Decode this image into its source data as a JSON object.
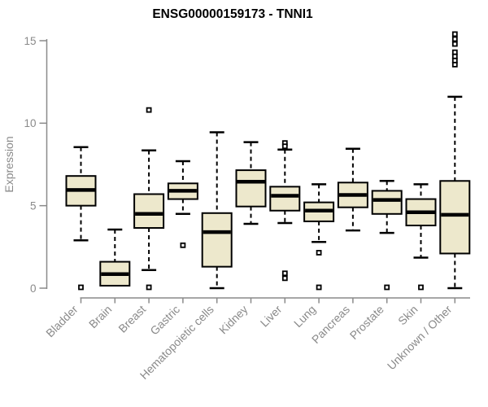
{
  "title": "ENSG00000159173 - TNNI1",
  "chart_data": {
    "type": "boxplot",
    "title": "ENSG00000159173 - TNNI1",
    "xlabel": "",
    "ylabel": "Expression",
    "ylim": [
      0,
      15
    ],
    "yticks": [
      0,
      5,
      10,
      15
    ],
    "grid": false,
    "legend": false,
    "categories": [
      "Bladder",
      "Brain",
      "Breast",
      "Gastric",
      "Hematopoietic cells",
      "Kidney",
      "Liver",
      "Lung",
      "Pancreas",
      "Prostate",
      "Skin",
      "Unknown / Other"
    ],
    "boxes": [
      {
        "name": "Bladder",
        "whisker_low": 2.9,
        "q1": 5.0,
        "median": 5.95,
        "q3": 6.8,
        "whisker_high": 8.55,
        "outliers": [
          0.05
        ]
      },
      {
        "name": "Brain",
        "whisker_low": 0.15,
        "q1": 0.15,
        "median": 0.85,
        "q3": 1.6,
        "whisker_high": 3.55,
        "outliers": []
      },
      {
        "name": "Breast",
        "whisker_low": 1.1,
        "q1": 3.65,
        "median": 4.5,
        "q3": 5.7,
        "whisker_high": 8.35,
        "outliers": [
          10.8,
          0.05
        ]
      },
      {
        "name": "Gastric",
        "whisker_low": 4.5,
        "q1": 5.4,
        "median": 5.9,
        "q3": 6.35,
        "whisker_high": 7.7,
        "outliers": [
          2.6
        ]
      },
      {
        "name": "Hematopoietic cells",
        "whisker_low": 0.0,
        "q1": 1.3,
        "median": 3.4,
        "q3": 4.55,
        "whisker_high": 9.45,
        "outliers": []
      },
      {
        "name": "Kidney",
        "whisker_low": 3.9,
        "q1": 4.95,
        "median": 6.45,
        "q3": 7.15,
        "whisker_high": 8.85,
        "outliers": []
      },
      {
        "name": "Liver",
        "whisker_low": 3.95,
        "q1": 4.7,
        "median": 5.6,
        "q3": 6.15,
        "whisker_high": 8.4,
        "outliers": [
          8.8,
          8.6,
          0.9,
          0.6
        ]
      },
      {
        "name": "Lung",
        "whisker_low": 2.8,
        "q1": 4.05,
        "median": 4.7,
        "q3": 5.2,
        "whisker_high": 6.3,
        "outliers": [
          2.15,
          0.05
        ]
      },
      {
        "name": "Pancreas",
        "whisker_low": 3.5,
        "q1": 4.9,
        "median": 5.65,
        "q3": 6.4,
        "whisker_high": 8.45,
        "outliers": []
      },
      {
        "name": "Prostate",
        "whisker_low": 3.35,
        "q1": 4.5,
        "median": 5.35,
        "q3": 5.9,
        "whisker_high": 6.5,
        "outliers": [
          0.05
        ]
      },
      {
        "name": "Skin",
        "whisker_low": 1.85,
        "q1": 3.8,
        "median": 4.6,
        "q3": 5.4,
        "whisker_high": 6.3,
        "outliers": [
          0.05
        ]
      },
      {
        "name": "Unknown / Other",
        "whisker_low": 0.0,
        "q1": 2.1,
        "median": 4.45,
        "q3": 6.5,
        "whisker_high": 11.6,
        "outliers": [
          15.4,
          15.1,
          14.8,
          14.3,
          14.05,
          13.8,
          13.55
        ]
      }
    ],
    "colors": {
      "box_fill": "#EDE8CC",
      "box_border": "#000000",
      "median": "#000000",
      "whisker": "#000000",
      "axis": "#8a8a8a",
      "title": "#000000",
      "background": "#ffffff"
    }
  }
}
